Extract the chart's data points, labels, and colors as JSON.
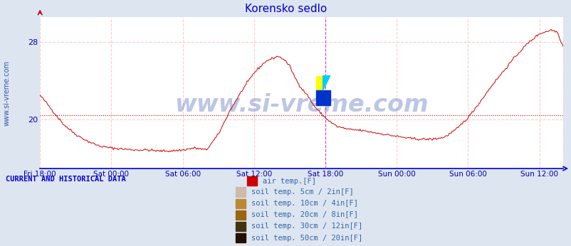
{
  "title": "Korensko sedlo",
  "title_color": "#0000cc",
  "background_color": "#dde5f0",
  "plot_bg_color": "#ffffff",
  "line_color": "#cc0000",
  "watermark": "www.si-vreme.com",
  "watermark_color": "#2244aa",
  "watermark_alpha": 0.3,
  "yticks": [
    20,
    28
  ],
  "ylim": [
    15.0,
    30.5
  ],
  "ylabel_color": "#0000aa",
  "grid_color": "#ffcccc",
  "grid_linestyle": "--",
  "hline_y": 20.5,
  "hline_color": "#cc0000",
  "hline_style": ":",
  "vline_color": "#cc44cc",
  "vline_style": "--",
  "xlabel_color": "#0000aa",
  "xtick_labels": [
    "Fri 18:00",
    "Sat 00:00",
    "Sat 06:00",
    "Sat 12:00",
    "Sat 18:00",
    "Sun 00:00",
    "Sun 06:00",
    "Sun 12:00"
  ],
  "xtick_positions": [
    0,
    6,
    12,
    18,
    24,
    30,
    36,
    42
  ],
  "xmax": 44,
  "legend_items": [
    {
      "label": "air temp.[F]",
      "color": "#cc0000"
    },
    {
      "label": "soil temp. 5cm / 2in[F]",
      "color": "#ccbbaa"
    },
    {
      "label": "soil temp. 10cm / 4in[F]",
      "color": "#bb8833"
    },
    {
      "label": "soil temp. 20cm / 8in[F]",
      "color": "#996611"
    },
    {
      "label": "soil temp. 30cm / 12in[F]",
      "color": "#443311"
    },
    {
      "label": "soil temp. 50cm / 20in[F]",
      "color": "#221100"
    }
  ],
  "current_data_label": "CURRENT AND HISTORICAL DATA",
  "current_data_color": "#0000cc",
  "sidebar_text": "www.si-vreme.com",
  "sidebar_color": "#3355aa",
  "temp_x": [
    0,
    0.5,
    1.0,
    2,
    3,
    4,
    5,
    6,
    7,
    8,
    9,
    10,
    11,
    12,
    13,
    14,
    15,
    16,
    17,
    18,
    19,
    20,
    20.5,
    21,
    21.5,
    22,
    22.5,
    23,
    23.5,
    24,
    24.5,
    25,
    26,
    27,
    28,
    29,
    30,
    31,
    32,
    33,
    34,
    35,
    36,
    37,
    38,
    39,
    40,
    41,
    42,
    42.5,
    43,
    43.5,
    44
  ],
  "temp_y": [
    22.5,
    21.8,
    21.0,
    19.5,
    18.5,
    17.8,
    17.3,
    17.1,
    17.0,
    16.9,
    16.9,
    16.8,
    16.8,
    16.9,
    17.1,
    16.9,
    18.5,
    21.0,
    23.0,
    24.8,
    26.0,
    26.5,
    26.2,
    25.5,
    24.2,
    23.2,
    22.5,
    21.5,
    20.8,
    20.2,
    19.7,
    19.3,
    19.0,
    18.9,
    18.7,
    18.5,
    18.3,
    18.1,
    18.0,
    18.0,
    18.2,
    19.0,
    20.2,
    21.8,
    23.5,
    25.0,
    26.5,
    27.8,
    28.8,
    29.0,
    29.2,
    29.0,
    27.5
  ]
}
